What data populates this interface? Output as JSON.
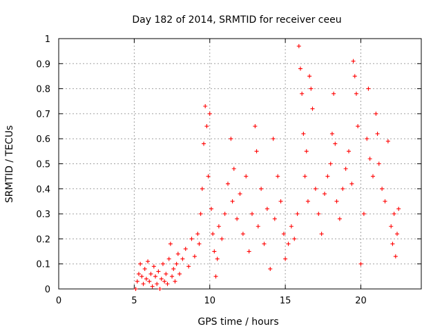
{
  "chart_data": {
    "type": "scatter",
    "title": "Day 182 of 2014, SRMTID for receiver ceeu",
    "xlabel": "GPS time / hours",
    "ylabel": "SRMTID / TECUs",
    "xlim": [
      0,
      24
    ],
    "ylim": [
      0,
      1
    ],
    "xticks": [
      0,
      5,
      10,
      15,
      20
    ],
    "xtick_labels": [
      "0",
      "5",
      "10",
      "15",
      "20"
    ],
    "yticks": [
      0,
      0.1,
      0.2,
      0.3,
      0.4,
      0.5,
      0.6,
      0.7,
      0.8,
      0.9,
      1
    ],
    "ytick_labels": [
      "0",
      "0.1",
      "0.2",
      "0.3",
      "0.4",
      "0.5",
      "0.6",
      "0.7",
      "0.8",
      "0.9",
      "1"
    ],
    "grid": true,
    "marker": "+",
    "color": "#ff0000",
    "series": [
      {
        "name": "SRMTID",
        "points": [
          [
            5.1,
            0.0
          ],
          [
            5.2,
            0.03
          ],
          [
            5.3,
            0.06
          ],
          [
            5.4,
            0.1
          ],
          [
            5.5,
            0.05
          ],
          [
            5.6,
            0.02
          ],
          [
            5.7,
            0.08
          ],
          [
            5.8,
            0.04
          ],
          [
            5.9,
            0.11
          ],
          [
            6.0,
            0.03
          ],
          [
            6.1,
            0.06
          ],
          [
            6.2,
            0.01
          ],
          [
            6.3,
            0.09
          ],
          [
            6.4,
            0.05
          ],
          [
            6.5,
            0.02
          ],
          [
            6.6,
            0.07
          ],
          [
            6.7,
            0.0
          ],
          [
            6.8,
            0.04
          ],
          [
            6.9,
            0.1
          ],
          [
            7.0,
            0.03
          ],
          [
            7.1,
            0.06
          ],
          [
            7.2,
            0.02
          ],
          [
            7.3,
            0.12
          ],
          [
            7.4,
            0.18
          ],
          [
            7.5,
            0.05
          ],
          [
            7.6,
            0.08
          ],
          [
            7.7,
            0.03
          ],
          [
            7.8,
            0.1
          ],
          [
            7.9,
            0.14
          ],
          [
            8.0,
            0.06
          ],
          [
            8.2,
            0.12
          ],
          [
            8.4,
            0.16
          ],
          [
            8.6,
            0.09
          ],
          [
            8.8,
            0.2
          ],
          [
            9.0,
            0.13
          ],
          [
            9.2,
            0.22
          ],
          [
            9.3,
            0.18
          ],
          [
            9.4,
            0.3
          ],
          [
            9.5,
            0.4
          ],
          [
            9.6,
            0.58
          ],
          [
            9.7,
            0.73
          ],
          [
            9.8,
            0.65
          ],
          [
            9.9,
            0.45
          ],
          [
            10.0,
            0.7
          ],
          [
            10.1,
            0.32
          ],
          [
            10.2,
            0.22
          ],
          [
            10.3,
            0.15
          ],
          [
            10.4,
            0.05
          ],
          [
            10.5,
            0.12
          ],
          [
            10.6,
            0.25
          ],
          [
            10.8,
            0.2
          ],
          [
            11.0,
            0.3
          ],
          [
            11.2,
            0.42
          ],
          [
            11.4,
            0.6
          ],
          [
            11.5,
            0.35
          ],
          [
            11.6,
            0.48
          ],
          [
            11.8,
            0.28
          ],
          [
            12.0,
            0.38
          ],
          [
            12.2,
            0.22
          ],
          [
            12.4,
            0.45
          ],
          [
            12.6,
            0.15
          ],
          [
            12.8,
            0.3
          ],
          [
            13.0,
            0.65
          ],
          [
            13.1,
            0.55
          ],
          [
            13.2,
            0.25
          ],
          [
            13.4,
            0.4
          ],
          [
            13.6,
            0.18
          ],
          [
            13.8,
            0.32
          ],
          [
            14.0,
            0.08
          ],
          [
            14.2,
            0.6
          ],
          [
            14.3,
            0.28
          ],
          [
            14.5,
            0.45
          ],
          [
            14.7,
            0.35
          ],
          [
            14.9,
            0.22
          ],
          [
            15.0,
            0.12
          ],
          [
            15.2,
            0.18
          ],
          [
            15.4,
            0.25
          ],
          [
            15.6,
            0.2
          ],
          [
            15.8,
            0.3
          ],
          [
            15.9,
            0.97
          ],
          [
            16.0,
            0.88
          ],
          [
            16.1,
            0.78
          ],
          [
            16.2,
            0.62
          ],
          [
            16.3,
            0.45
          ],
          [
            16.4,
            0.55
          ],
          [
            16.5,
            0.35
          ],
          [
            16.6,
            0.85
          ],
          [
            16.7,
            0.8
          ],
          [
            16.8,
            0.72
          ],
          [
            17.0,
            0.4
          ],
          [
            17.2,
            0.3
          ],
          [
            17.4,
            0.22
          ],
          [
            17.6,
            0.38
          ],
          [
            17.8,
            0.45
          ],
          [
            18.0,
            0.5
          ],
          [
            18.1,
            0.62
          ],
          [
            18.2,
            0.78
          ],
          [
            18.3,
            0.58
          ],
          [
            18.4,
            0.35
          ],
          [
            18.6,
            0.28
          ],
          [
            18.8,
            0.4
          ],
          [
            19.0,
            0.48
          ],
          [
            19.2,
            0.55
          ],
          [
            19.4,
            0.42
          ],
          [
            19.5,
            0.91
          ],
          [
            19.6,
            0.85
          ],
          [
            19.7,
            0.78
          ],
          [
            19.8,
            0.65
          ],
          [
            20.0,
            0.1
          ],
          [
            20.2,
            0.3
          ],
          [
            20.4,
            0.6
          ],
          [
            20.5,
            0.8
          ],
          [
            20.6,
            0.52
          ],
          [
            20.8,
            0.45
          ],
          [
            21.0,
            0.7
          ],
          [
            21.1,
            0.62
          ],
          [
            21.2,
            0.5
          ],
          [
            21.4,
            0.4
          ],
          [
            21.6,
            0.35
          ],
          [
            21.8,
            0.59
          ],
          [
            22.0,
            0.25
          ],
          [
            22.1,
            0.18
          ],
          [
            22.2,
            0.3
          ],
          [
            22.3,
            0.13
          ],
          [
            22.4,
            0.22
          ],
          [
            22.5,
            0.32
          ]
        ]
      }
    ]
  }
}
